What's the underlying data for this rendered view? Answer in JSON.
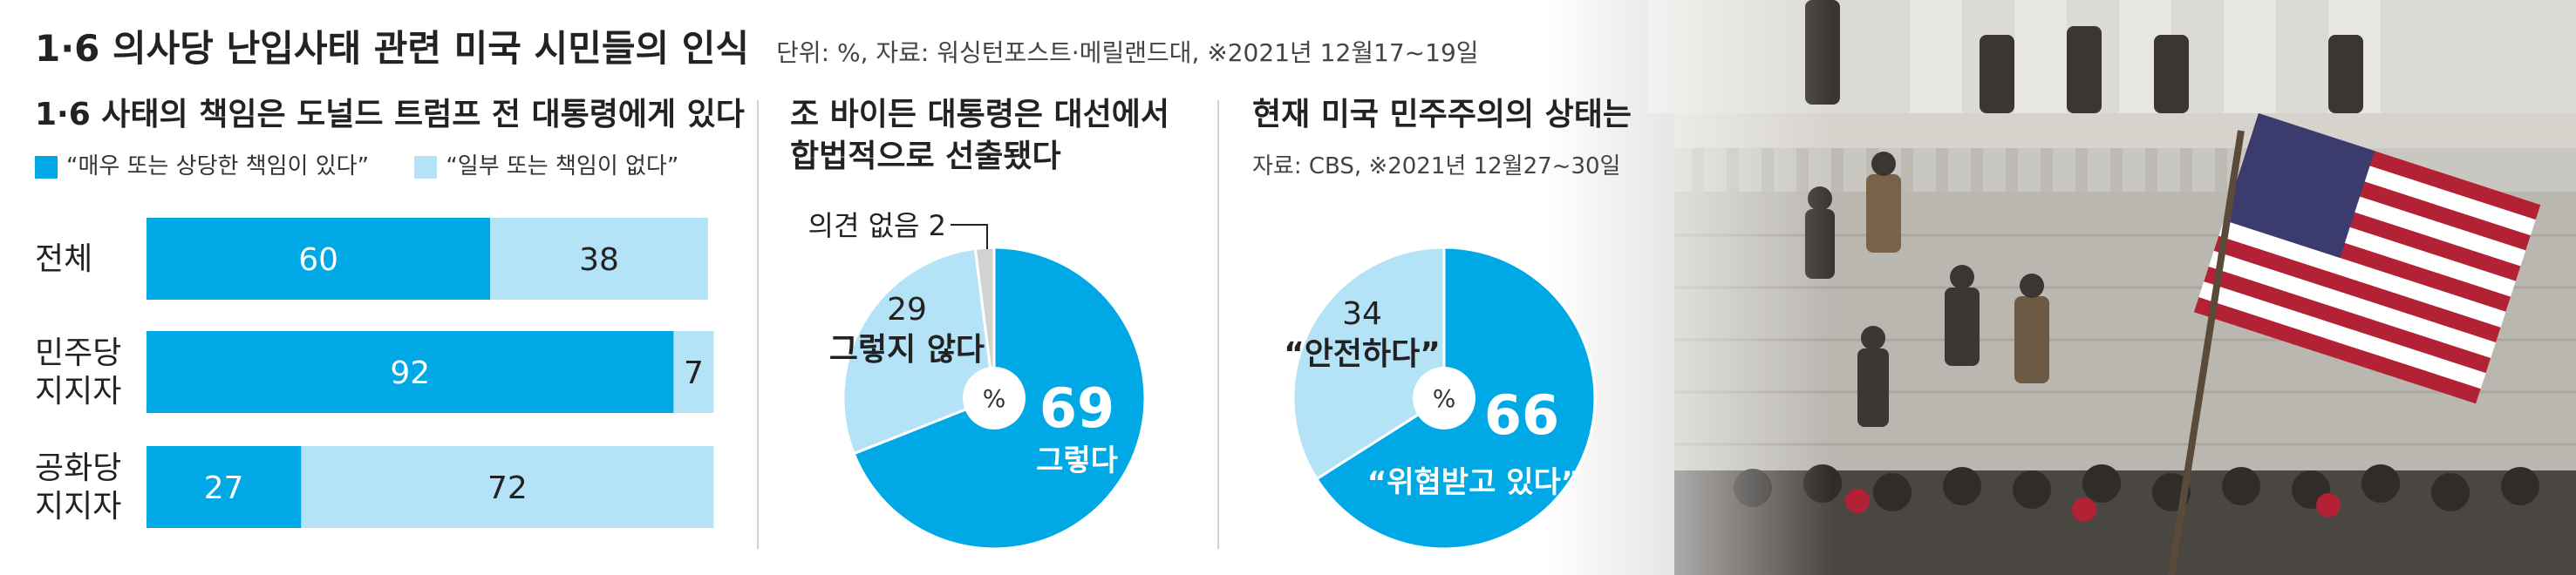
{
  "header": {
    "title": "1·6 의사당 난입사태 관련 미국 시민들의 인식",
    "source": "단위: %, 자료: 워싱턴포스트·메릴랜드대, ※2021년 12월17~19일"
  },
  "colors": {
    "dark": "#00a9e5",
    "light": "#b4e3f7",
    "gray": "#d2d2d2"
  },
  "chart_data": [
    {
      "type": "bar",
      "title": "1·6 사태의 책임은 도널드 트럼프 전 대통령에게 있다",
      "orientation": "horizontal",
      "stacked": true,
      "categories": [
        "전체",
        "민주당 지지자",
        "공화당 지지자"
      ],
      "series": [
        {
          "name": "“매우 또는 상당한 책임이 있다”",
          "values": [
            60,
            92,
            27
          ]
        },
        {
          "name": "“일부 또는 책임이 없다”",
          "values": [
            38,
            7,
            72
          ]
        }
      ],
      "xlim": [
        0,
        100
      ],
      "legend_position": "top"
    },
    {
      "type": "pie",
      "title": "조 바이든 대통령은 대선에서 합법적으로 선출됐다",
      "labels": [
        "그렇다",
        "그렇지 않다",
        "의견 없음"
      ],
      "values": [
        69,
        29,
        2
      ],
      "center_label": "%"
    },
    {
      "type": "pie",
      "title": "현재 미국 민주주의의 상태는",
      "source": "자료: CBS, ※2021년 12월27~30일",
      "labels": [
        "“위협받고 있다”",
        "“안전하다”"
      ],
      "values": [
        66,
        34
      ],
      "center_label": "%"
    }
  ]
}
